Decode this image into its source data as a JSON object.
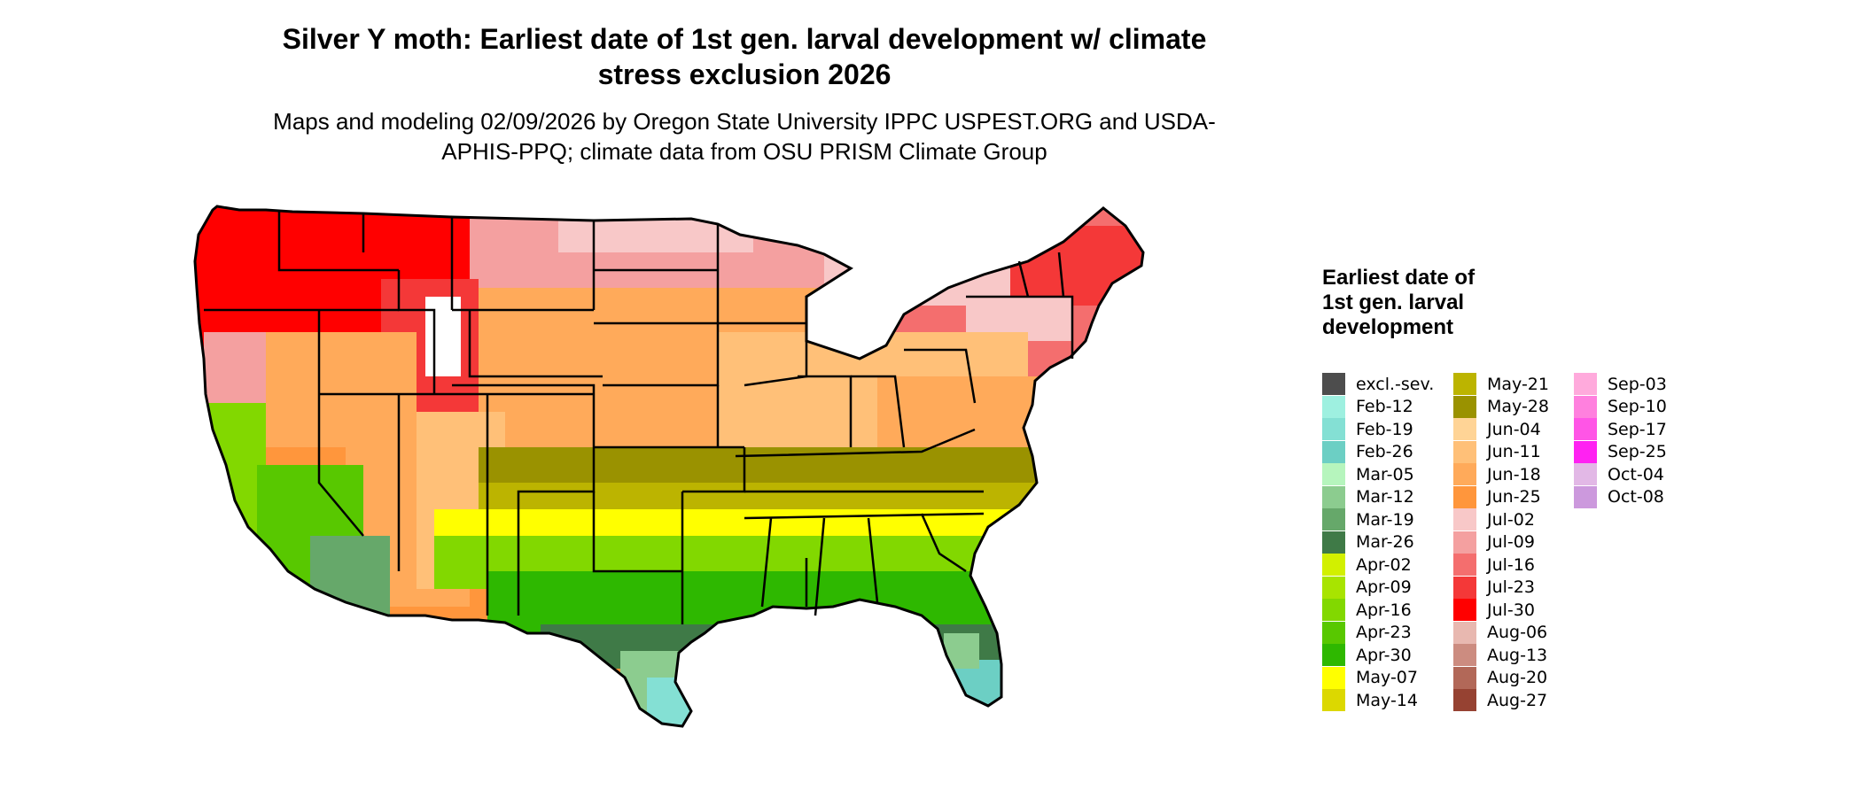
{
  "title": "Silver Y moth: Earliest date of 1st gen. larval development w/ climate stress exclusion 2026",
  "subtitle": "Maps and modeling 02/09/2026 by Oregon State University IPPC USPEST.ORG and USDA-APHIS-PPQ; climate data from OSU PRISM Climate Group",
  "legend": {
    "title": "Earliest date of 1st gen. larval development",
    "items": [
      {
        "label": "excl.-sev.",
        "color": "#4d4d4d"
      },
      {
        "label": "Feb-12",
        "color": "#9ef0e0"
      },
      {
        "label": "Feb-19",
        "color": "#84e0d4"
      },
      {
        "label": "Feb-26",
        "color": "#6ccfc4"
      },
      {
        "label": "Mar-05",
        "color": "#b6f5bd"
      },
      {
        "label": "Mar-12",
        "color": "#8ccc8f"
      },
      {
        "label": "Mar-19",
        "color": "#66a86a"
      },
      {
        "label": "Mar-26",
        "color": "#3f7a47"
      },
      {
        "label": "Apr-02",
        "color": "#d2f000"
      },
      {
        "label": "Apr-09",
        "color": "#a8e400"
      },
      {
        "label": "Apr-16",
        "color": "#82d800"
      },
      {
        "label": "Apr-23",
        "color": "#58c800"
      },
      {
        "label": "Apr-30",
        "color": "#2eb800"
      },
      {
        "label": "May-07",
        "color": "#ffff00"
      },
      {
        "label": "May-14",
        "color": "#dcd800"
      },
      {
        "label": "May-21",
        "color": "#bcb400"
      },
      {
        "label": "May-28",
        "color": "#9a9200"
      },
      {
        "label": "Jun-04",
        "color": "#ffd496"
      },
      {
        "label": "Jun-11",
        "color": "#ffc078"
      },
      {
        "label": "Jun-18",
        "color": "#ffaa5a"
      },
      {
        "label": "Jun-25",
        "color": "#ff963c"
      },
      {
        "label": "Jul-02",
        "color": "#f8c8c8"
      },
      {
        "label": "Jul-09",
        "color": "#f4a0a0"
      },
      {
        "label": "Jul-16",
        "color": "#f46e6e"
      },
      {
        "label": "Jul-23",
        "color": "#f43838"
      },
      {
        "label": "Jul-30",
        "color": "#ff0000"
      },
      {
        "label": "Aug-06",
        "color": "#e8b8b0"
      },
      {
        "label": "Aug-13",
        "color": "#cc8c80"
      },
      {
        "label": "Aug-20",
        "color": "#b26858"
      },
      {
        "label": "Aug-27",
        "color": "#964232"
      },
      {
        "label": "Sep-03",
        "color": "#ffaadc"
      },
      {
        "label": "Sep-10",
        "color": "#ff80de"
      },
      {
        "label": "Sep-17",
        "color": "#ff55e6"
      },
      {
        "label": "Sep-25",
        "color": "#ff22f2"
      },
      {
        "label": "Oct-04",
        "color": "#e2b8e6"
      },
      {
        "label": "Oct-08",
        "color": "#cc99dd"
      }
    ]
  }
}
